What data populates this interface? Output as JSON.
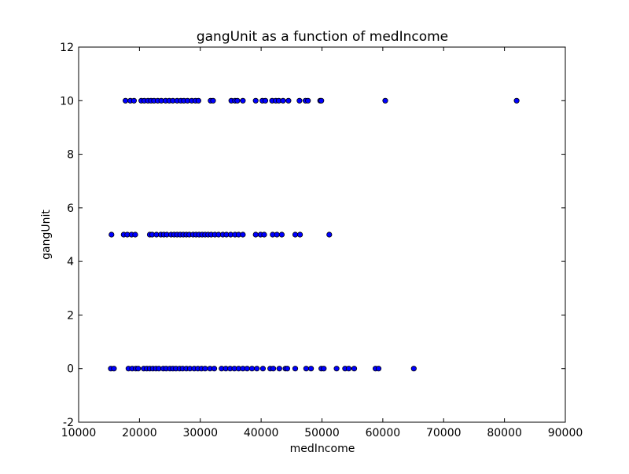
{
  "chart_data": {
    "type": "scatter",
    "title": "gangUnit as a function of medIncome",
    "xlabel": "medIncome",
    "ylabel": "gangUnit",
    "xlim": [
      10000,
      90000
    ],
    "ylim": [
      -2,
      12
    ],
    "xticks": [
      10000,
      20000,
      30000,
      40000,
      50000,
      60000,
      70000,
      80000,
      90000
    ],
    "yticks": [
      -2,
      0,
      2,
      4,
      6,
      8,
      10,
      12
    ],
    "marker_color": "#0000ff",
    "marker_edge": "#000000",
    "grid": false,
    "points": [
      [
        15300,
        0
      ],
      [
        15800,
        0
      ],
      [
        18200,
        0
      ],
      [
        18800,
        0
      ],
      [
        19400,
        0
      ],
      [
        19800,
        0
      ],
      [
        20700,
        0
      ],
      [
        21200,
        0
      ],
      [
        21700,
        0
      ],
      [
        22200,
        0
      ],
      [
        22700,
        0
      ],
      [
        23200,
        0
      ],
      [
        23900,
        0
      ],
      [
        24400,
        0
      ],
      [
        25000,
        0
      ],
      [
        25500,
        0
      ],
      [
        26000,
        0
      ],
      [
        26600,
        0
      ],
      [
        27100,
        0
      ],
      [
        27700,
        0
      ],
      [
        28300,
        0
      ],
      [
        29000,
        0
      ],
      [
        29600,
        0
      ],
      [
        30200,
        0
      ],
      [
        30800,
        0
      ],
      [
        31600,
        0
      ],
      [
        32300,
        0
      ],
      [
        33500,
        0
      ],
      [
        34200,
        0
      ],
      [
        34900,
        0
      ],
      [
        35600,
        0
      ],
      [
        36300,
        0
      ],
      [
        37000,
        0
      ],
      [
        37700,
        0
      ],
      [
        38500,
        0
      ],
      [
        39300,
        0
      ],
      [
        40300,
        0
      ],
      [
        41500,
        0
      ],
      [
        42000,
        0
      ],
      [
        43000,
        0
      ],
      [
        44000,
        0
      ],
      [
        44300,
        0
      ],
      [
        45600,
        0
      ],
      [
        47400,
        0
      ],
      [
        48200,
        0
      ],
      [
        49900,
        0
      ],
      [
        50300,
        0
      ],
      [
        52400,
        0
      ],
      [
        53800,
        0
      ],
      [
        54400,
        0
      ],
      [
        55300,
        0
      ],
      [
        58800,
        0
      ],
      [
        59300,
        0
      ],
      [
        65100,
        0
      ],
      [
        15400,
        5
      ],
      [
        17400,
        5
      ],
      [
        18000,
        5
      ],
      [
        18700,
        5
      ],
      [
        19300,
        5
      ],
      [
        21700,
        5
      ],
      [
        22100,
        5
      ],
      [
        22800,
        5
      ],
      [
        23500,
        5
      ],
      [
        24000,
        5
      ],
      [
        24500,
        5
      ],
      [
        25200,
        5
      ],
      [
        25700,
        5
      ],
      [
        26200,
        5
      ],
      [
        26700,
        5
      ],
      [
        27200,
        5
      ],
      [
        27700,
        5
      ],
      [
        28200,
        5
      ],
      [
        28800,
        5
      ],
      [
        29300,
        5
      ],
      [
        29800,
        5
      ],
      [
        30300,
        5
      ],
      [
        30800,
        5
      ],
      [
        31300,
        5
      ],
      [
        31800,
        5
      ],
      [
        32400,
        5
      ],
      [
        33000,
        5
      ],
      [
        33700,
        5
      ],
      [
        34300,
        5
      ],
      [
        35000,
        5
      ],
      [
        35700,
        5
      ],
      [
        36300,
        5
      ],
      [
        37000,
        5
      ],
      [
        39100,
        5
      ],
      [
        39900,
        5
      ],
      [
        40500,
        5
      ],
      [
        41900,
        5
      ],
      [
        42600,
        5
      ],
      [
        43400,
        5
      ],
      [
        45600,
        5
      ],
      [
        46400,
        5
      ],
      [
        51200,
        5
      ],
      [
        17700,
        10
      ],
      [
        18500,
        10
      ],
      [
        19100,
        10
      ],
      [
        20300,
        10
      ],
      [
        20800,
        10
      ],
      [
        21400,
        10
      ],
      [
        21900,
        10
      ],
      [
        22400,
        10
      ],
      [
        23000,
        10
      ],
      [
        23600,
        10
      ],
      [
        24300,
        10
      ],
      [
        24900,
        10
      ],
      [
        25500,
        10
      ],
      [
        26200,
        10
      ],
      [
        26800,
        10
      ],
      [
        27300,
        10
      ],
      [
        27900,
        10
      ],
      [
        28600,
        10
      ],
      [
        29200,
        10
      ],
      [
        29700,
        10
      ],
      [
        31700,
        10
      ],
      [
        32100,
        10
      ],
      [
        35100,
        10
      ],
      [
        35700,
        10
      ],
      [
        36100,
        10
      ],
      [
        37000,
        10
      ],
      [
        39100,
        10
      ],
      [
        40200,
        10
      ],
      [
        40700,
        10
      ],
      [
        41800,
        10
      ],
      [
        42400,
        10
      ],
      [
        42900,
        10
      ],
      [
        43600,
        10
      ],
      [
        44500,
        10
      ],
      [
        46300,
        10
      ],
      [
        47300,
        10
      ],
      [
        47700,
        10
      ],
      [
        49700,
        10
      ],
      [
        49900,
        10
      ],
      [
        60400,
        10
      ],
      [
        82000,
        10
      ]
    ]
  }
}
